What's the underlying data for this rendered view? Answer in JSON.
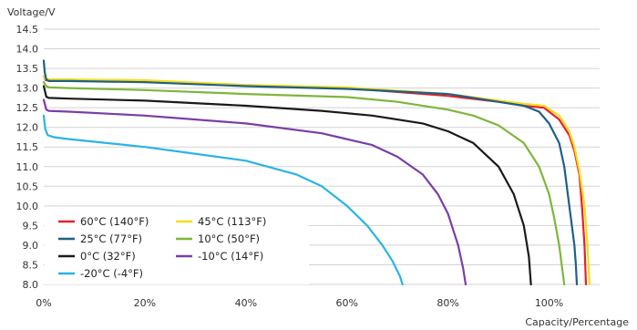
{
  "chart_data": {
    "type": "line",
    "title": "",
    "xlabel": "Capacity/Percentage",
    "ylabel": "Voltage/V",
    "xlim": [
      0,
      110
    ],
    "ylim": [
      8.0,
      14.5
    ],
    "x_ticks": [
      0,
      20,
      40,
      60,
      80,
      100
    ],
    "x_tick_labels": [
      "0%",
      "20%",
      "40%",
      "60%",
      "80%",
      "100%"
    ],
    "y_ticks": [
      8.0,
      8.5,
      9.0,
      9.5,
      10.0,
      10.5,
      11.0,
      11.5,
      12.0,
      12.5,
      13.0,
      13.5,
      14.0,
      14.5
    ],
    "y_tick_labels": [
      "8.0",
      "8.5",
      "9.0",
      "9.5",
      "10.0",
      "10.5",
      "11.0",
      "11.5",
      "12.0",
      "12.5",
      "13.0",
      "13.5",
      "14.0",
      "14.5"
    ],
    "grid": "horizontal",
    "legend_position": "bottom-left",
    "series": [
      {
        "name": "60°C  (140°F)",
        "color": "#e8202a",
        "x": [
          0,
          0.4,
          1,
          5,
          20,
          40,
          60,
          80,
          90,
          95,
          99,
          102,
          104,
          105,
          106,
          106.5,
          107,
          107.3
        ],
        "y": [
          13.3,
          13.2,
          13.2,
          13.2,
          13.18,
          13.07,
          13.0,
          12.8,
          12.65,
          12.55,
          12.5,
          12.2,
          11.8,
          11.4,
          10.8,
          10.0,
          9.0,
          8.0
        ]
      },
      {
        "name": "45°C  (113°F)",
        "color": "#f5dd1c",
        "x": [
          0,
          0.4,
          1,
          5,
          20,
          40,
          60,
          80,
          90,
          95,
          99,
          102,
          104,
          105,
          106,
          107,
          107.6,
          108
        ],
        "y": [
          13.3,
          13.22,
          13.22,
          13.22,
          13.2,
          13.08,
          13.02,
          12.85,
          12.68,
          12.6,
          12.55,
          12.3,
          11.9,
          11.5,
          10.9,
          10.0,
          9.0,
          8.0
        ]
      },
      {
        "name": "25°C  (77°F)",
        "color": "#1f5f86",
        "x": [
          0,
          0.2,
          0.5,
          1,
          5,
          20,
          40,
          60,
          80,
          90,
          95,
          98,
          100,
          102,
          103,
          104,
          105,
          105.3,
          105.5
        ],
        "y": [
          13.7,
          13.4,
          13.22,
          13.18,
          13.18,
          13.15,
          13.05,
          12.98,
          12.85,
          12.65,
          12.55,
          12.4,
          12.1,
          11.6,
          11.0,
          10.0,
          9.0,
          8.5,
          8.0
        ]
      },
      {
        "name": "10°C  (50°F)",
        "color": "#7fb53c",
        "x": [
          0,
          0.5,
          1,
          5,
          20,
          40,
          60,
          70,
          80,
          85,
          90,
          95,
          98,
          100,
          101,
          102,
          102.5,
          103
        ],
        "y": [
          13.15,
          13.05,
          13.02,
          13.0,
          12.95,
          12.85,
          12.77,
          12.65,
          12.45,
          12.3,
          12.05,
          11.6,
          11.0,
          10.3,
          9.7,
          9.0,
          8.5,
          8.0
        ]
      },
      {
        "name": "0°C  (32°F)",
        "color": "#1a1a1a",
        "x": [
          0,
          0.5,
          1,
          5,
          20,
          40,
          55,
          65,
          75,
          80,
          85,
          90,
          93,
          95,
          96,
          96.4
        ],
        "y": [
          13.05,
          12.78,
          12.75,
          12.73,
          12.68,
          12.55,
          12.42,
          12.3,
          12.1,
          11.9,
          11.6,
          11.0,
          10.3,
          9.5,
          8.7,
          8.0
        ]
      },
      {
        "name": "-10°C  (14°F)",
        "color": "#7a3ea5",
        "x": [
          0,
          0.5,
          1,
          5,
          20,
          40,
          55,
          65,
          70,
          75,
          78,
          80,
          82,
          83,
          83.5
        ],
        "y": [
          12.7,
          12.45,
          12.42,
          12.4,
          12.3,
          12.1,
          11.85,
          11.55,
          11.25,
          10.8,
          10.3,
          9.8,
          9.0,
          8.4,
          8.0
        ]
      },
      {
        "name": "-20°C  (-4°F)",
        "color": "#2bb3e3",
        "x": [
          0,
          0.3,
          0.8,
          2,
          5,
          20,
          40,
          50,
          55,
          60,
          64,
          67,
          69,
          70.5,
          71
        ],
        "y": [
          12.3,
          11.95,
          11.8,
          11.75,
          11.7,
          11.5,
          11.15,
          10.8,
          10.5,
          10.0,
          9.5,
          9.0,
          8.6,
          8.2,
          8.0
        ]
      }
    ]
  }
}
